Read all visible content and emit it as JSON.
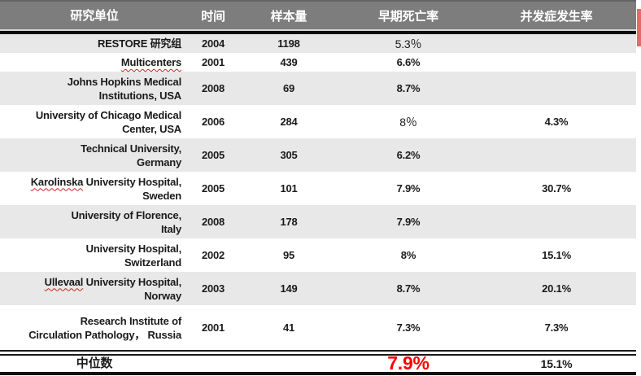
{
  "table": {
    "columns": [
      {
        "label": "研究单位"
      },
      {
        "label": "时间"
      },
      {
        "label": "样本量"
      },
      {
        "label": "早期死亡率"
      },
      {
        "label": "并发症发生率"
      }
    ],
    "rows": [
      {
        "org": "RESTORE 研究组",
        "year": "2004",
        "n": "1198",
        "mortality": "5.3％",
        "mortality_light": true,
        "complication": "",
        "shaded": true
      },
      {
        "org": "Multicenters",
        "year": "2001",
        "n": "439",
        "mortality": "6.6%",
        "complication": "",
        "shaded": false,
        "misspelled": "Multicenters"
      },
      {
        "org": "Johns Hopkins Medical\nInstitutions, USA",
        "year": "2008",
        "n": "69",
        "mortality": "8.7%",
        "complication": "",
        "shaded": true
      },
      {
        "org": "University of Chicago Medical\nCenter, USA",
        "year": "2006",
        "n": "284",
        "mortality": "8％",
        "mortality_light": true,
        "complication": "4.3%",
        "shaded": false
      },
      {
        "org": "Technical University,\nGermany",
        "year": "2005",
        "n": "305",
        "mortality": "6.2%",
        "complication": "",
        "shaded": true
      },
      {
        "org": "Karolinska University Hospital,\nSweden",
        "year": "2005",
        "n": "101",
        "mortality": "7.9%",
        "complication": "30.7%",
        "shaded": false,
        "misspelled": "Karolinska"
      },
      {
        "org": "University of Florence,\nItaly",
        "year": "2008",
        "n": "178",
        "mortality": "7.9%",
        "complication": "",
        "shaded": true
      },
      {
        "org": "University Hospital,\nSwitzerland",
        "year": "2002",
        "n": "95",
        "mortality": "8%",
        "complication": "15.1%",
        "shaded": false
      },
      {
        "org": "Ullevaal University Hospital,\nNorway",
        "year": "2003",
        "n": "149",
        "mortality": "8.7%",
        "complication": "20.1%",
        "shaded": true,
        "misspelled": "Ullevaal"
      },
      {
        "org": "Research Institute of\nCirculation Pathology， Russia",
        "year": "2001",
        "n": "41",
        "mortality": "7.3%",
        "complication": "7.3%",
        "shaded": false
      }
    ],
    "median": {
      "label": "中位数",
      "mortality": "7.9%",
      "complication": "15.1%"
    }
  },
  "colors": {
    "header_bg": "#7d7d7d",
    "row_shade": "#e8e8e8",
    "median_red": "#ff0000",
    "edge_marker_red": "#e26b6b"
  }
}
